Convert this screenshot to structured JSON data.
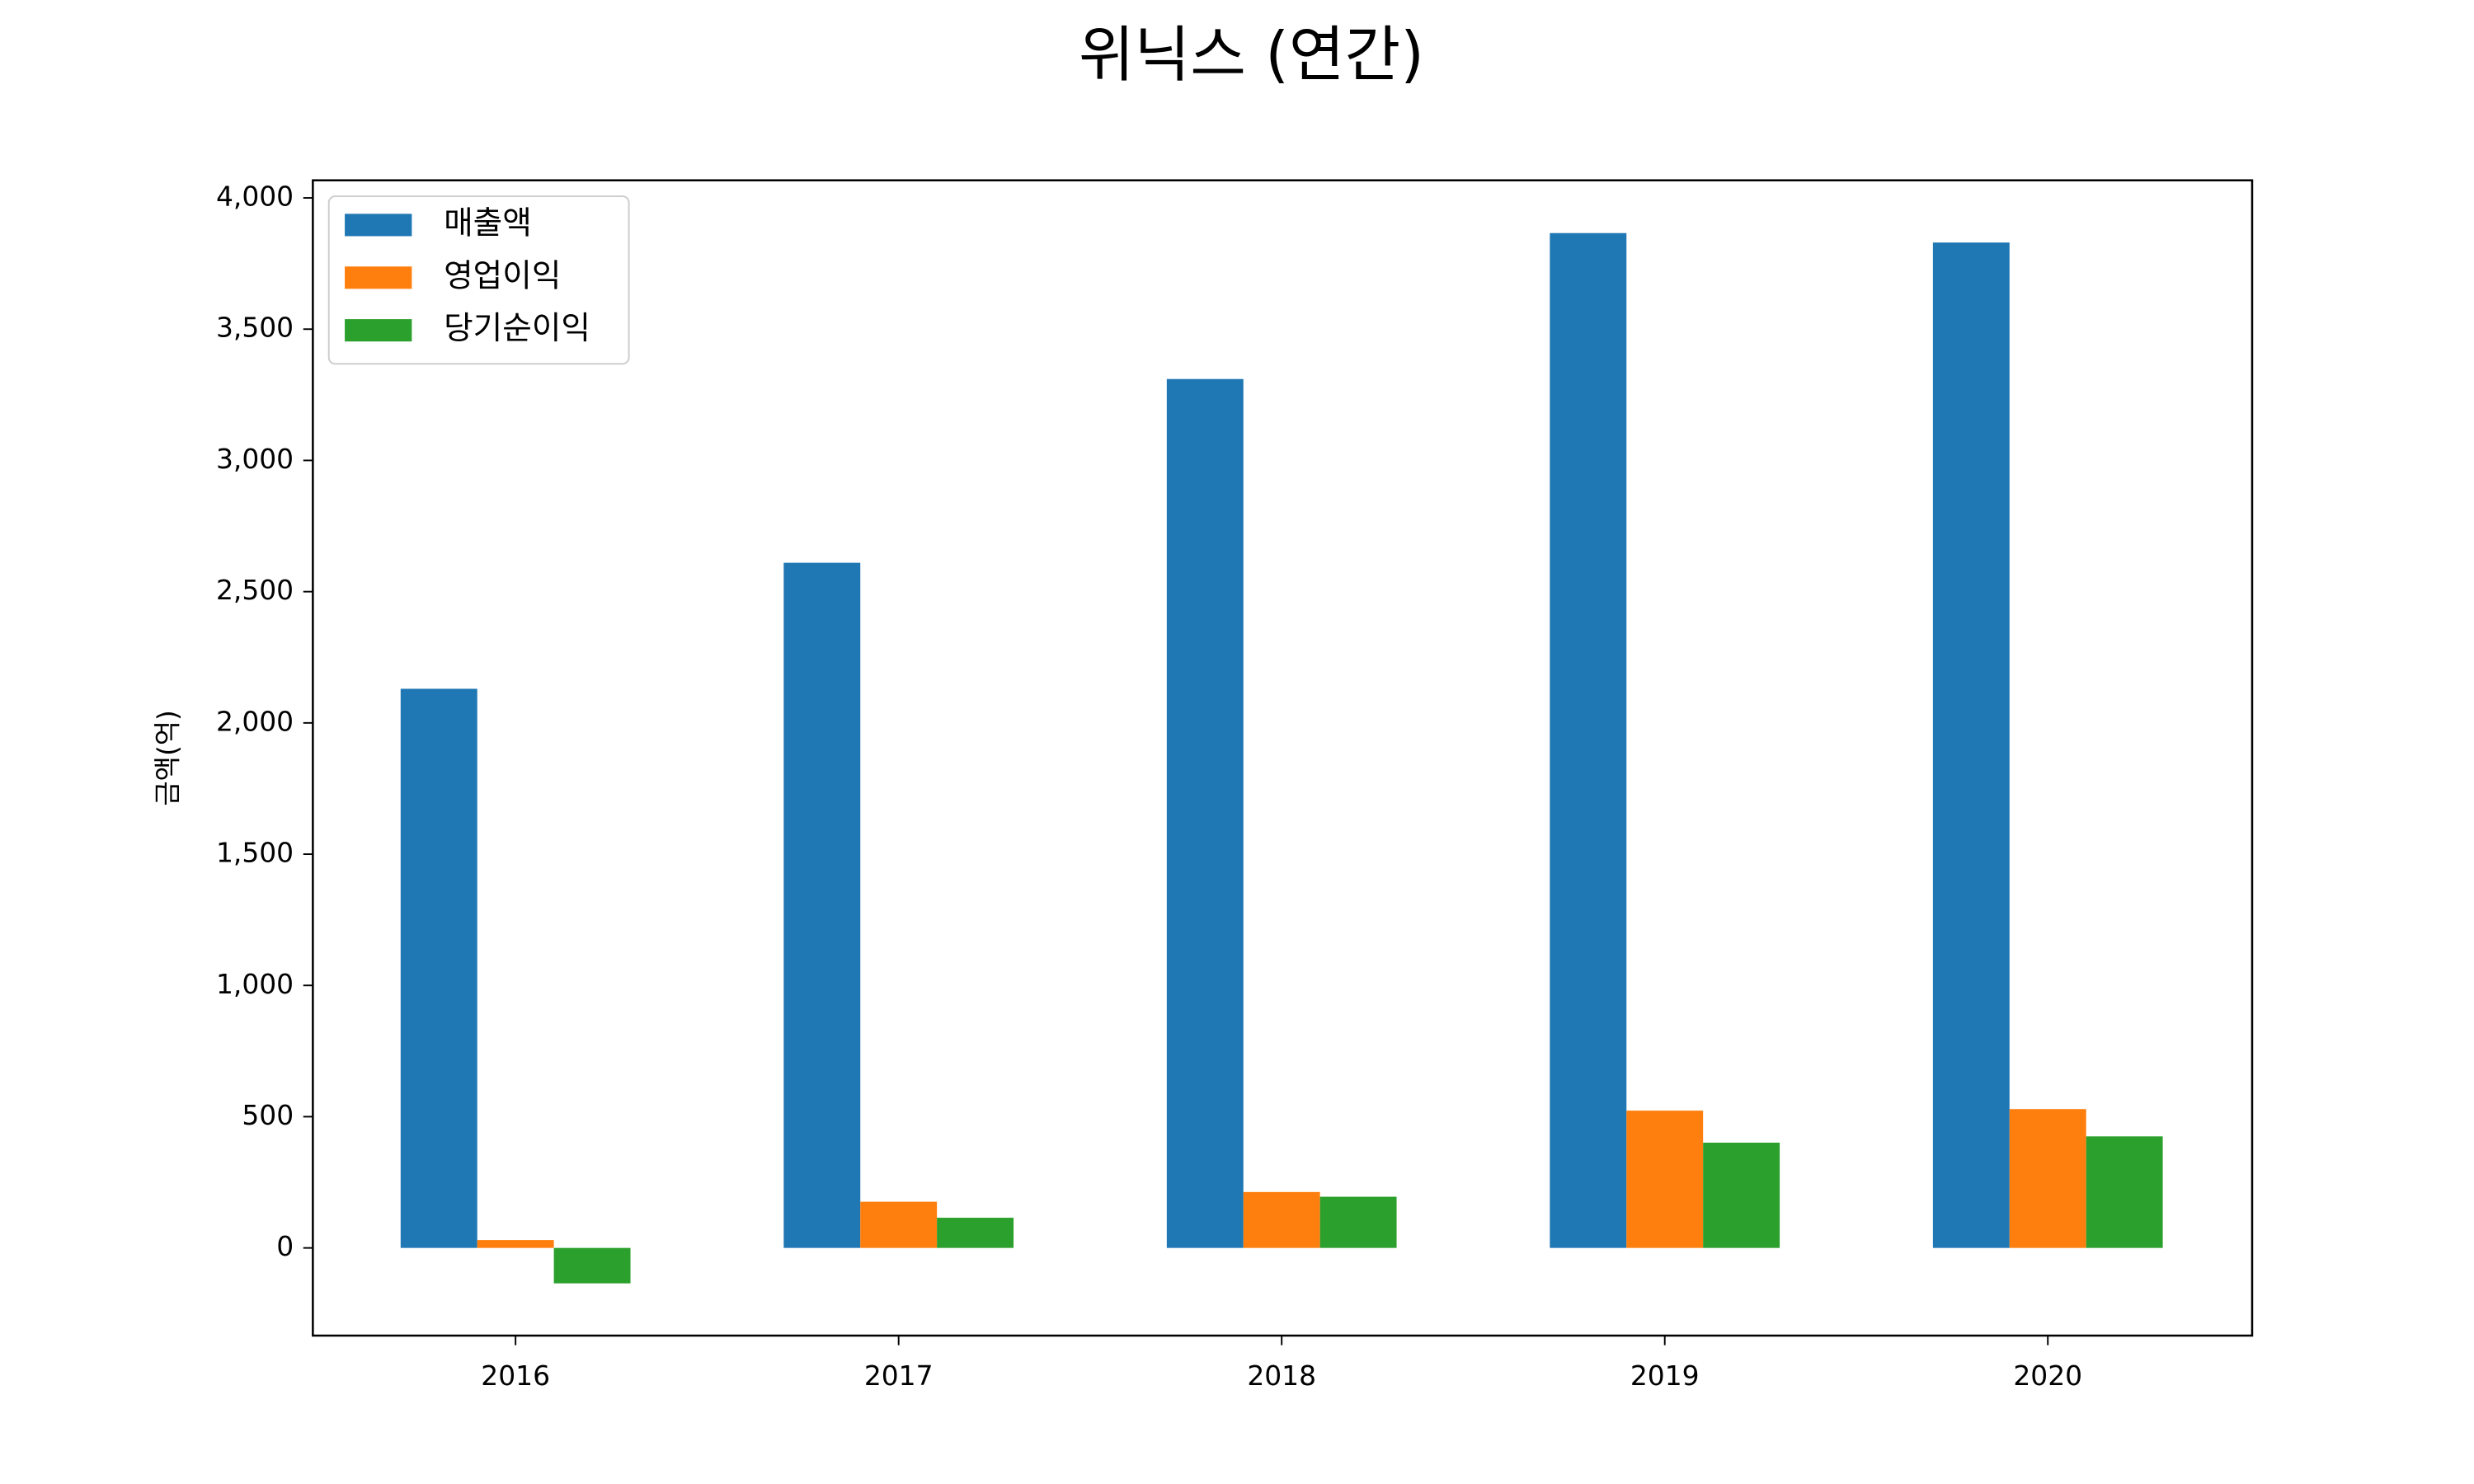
{
  "chart_data": {
    "type": "bar",
    "title": "위닉스 (연간)",
    "y_label": "금액(억)",
    "categories": [
      "2016",
      "2017",
      "2018",
      "2019",
      "2020"
    ],
    "series": [
      {
        "name": "매출액",
        "color": "#1f77b4",
        "values": [
          2130,
          2610,
          3310,
          3866,
          3830
        ]
      },
      {
        "name": "영업이익",
        "color": "#ff7f0e",
        "values": [
          30,
          176,
          213,
          523,
          529
        ]
      },
      {
        "name": "당기순이익",
        "color": "#2ca02c",
        "values": [
          -135,
          115,
          195,
          401,
          425
        ]
      }
    ],
    "ylim": [
      -334,
      4067
    ],
    "yticks": [
      0,
      500,
      {
        "value": 1000,
        "label": "1,000"
      },
      {
        "value": 1500,
        "label": "1,500"
      },
      {
        "value": 2000,
        "label": "2,000"
      },
      {
        "value": 2500,
        "label": "2,500"
      },
      {
        "value": 3000,
        "label": "3,000"
      },
      {
        "value": 3500,
        "label": "3,500"
      },
      {
        "value": 4000,
        "label": "4,000"
      }
    ],
    "legend": "upper left"
  }
}
